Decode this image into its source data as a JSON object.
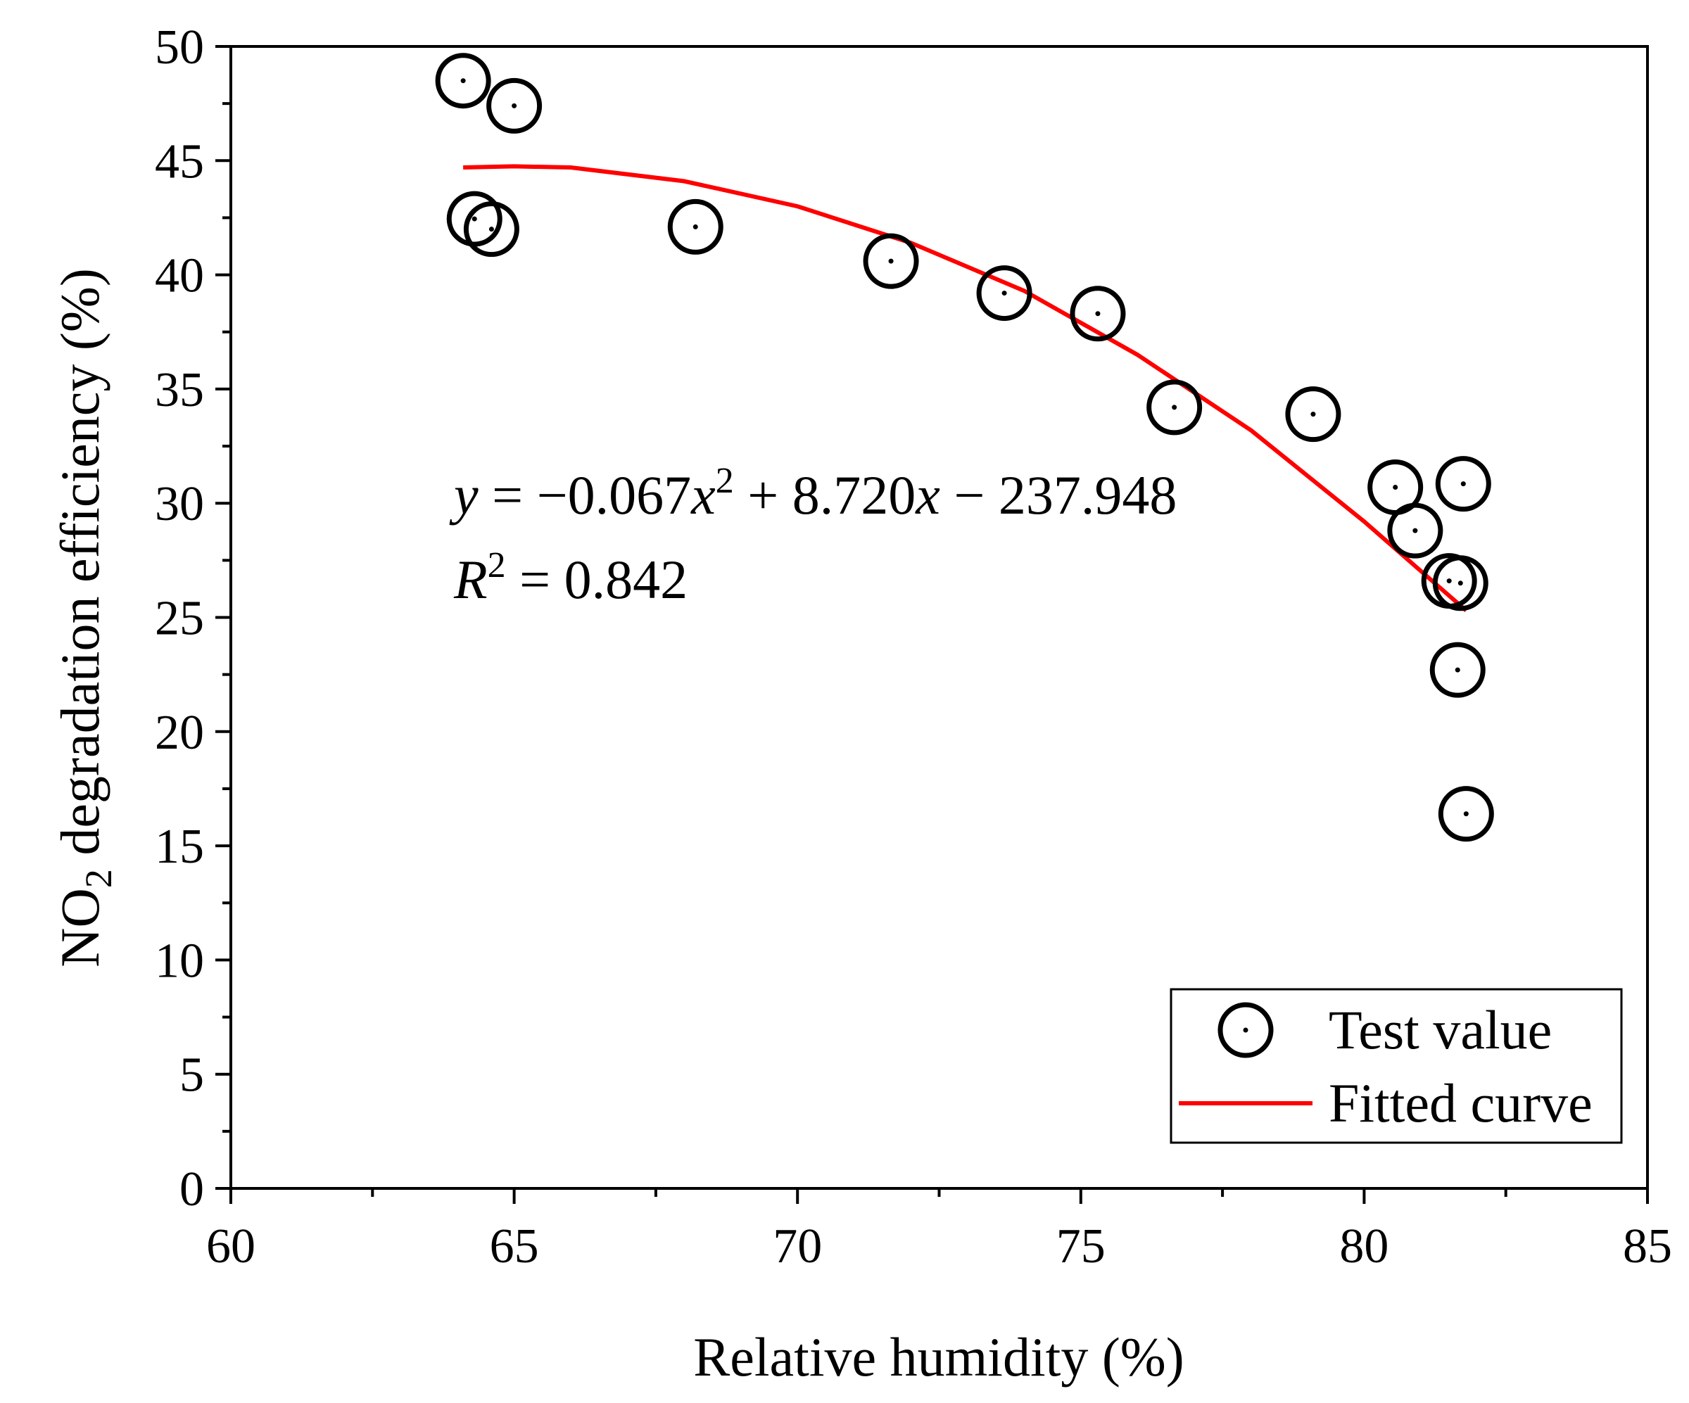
{
  "chart_data": {
    "type": "scatter",
    "xlabel": "Relative humidity (%)",
    "ylabel_parts": {
      "main": "NO",
      "sub": "2",
      "rest": " degradation efficiency (%)"
    },
    "xlim": [
      60,
      85
    ],
    "ylim": [
      0,
      50
    ],
    "xticks": [
      "60",
      "65",
      "70",
      "75",
      "80",
      "85"
    ],
    "yticks": [
      "0",
      "5",
      "10",
      "15",
      "20",
      "25",
      "30",
      "35",
      "40",
      "45",
      "50"
    ],
    "grid": false,
    "legend_position": "bottom-right",
    "legend": {
      "test": "Test value",
      "fit": "Fitted curve"
    },
    "annotation": {
      "equation": {
        "y": "y",
        "p1": " = −0.067",
        "x1": "x",
        "sup": "2",
        "p2": " + 8.720",
        "x2": "x",
        "p3": " − 237.948"
      },
      "r2": {
        "r": "R",
        "sup": "2",
        "rest": " = 0.842"
      }
    },
    "colors": {
      "points": "#000000",
      "fit": "#ff0000"
    },
    "series": [
      {
        "name": "Test value",
        "kind": "scatter",
        "x": [
          64.1,
          65.0,
          64.3,
          64.6,
          68.2,
          71.65,
          73.65,
          75.3,
          76.65,
          79.1,
          80.55,
          80.9,
          81.75,
          81.5,
          81.7,
          81.65,
          81.8
        ],
        "y": [
          48.5,
          47.4,
          42.45,
          42.0,
          42.1,
          40.6,
          39.2,
          38.3,
          34.2,
          33.9,
          30.7,
          28.8,
          30.85,
          26.6,
          26.5,
          22.7,
          16.4
        ]
      },
      {
        "name": "Fitted curve",
        "kind": "line",
        "x": [
          64.1,
          65,
          66,
          68,
          70,
          72,
          74,
          76,
          78,
          80,
          81.8
        ],
        "y": [
          44.7,
          44.75,
          44.7,
          44.1,
          43.0,
          41.4,
          39.3,
          36.5,
          33.2,
          29.2,
          25.3
        ]
      }
    ]
  }
}
